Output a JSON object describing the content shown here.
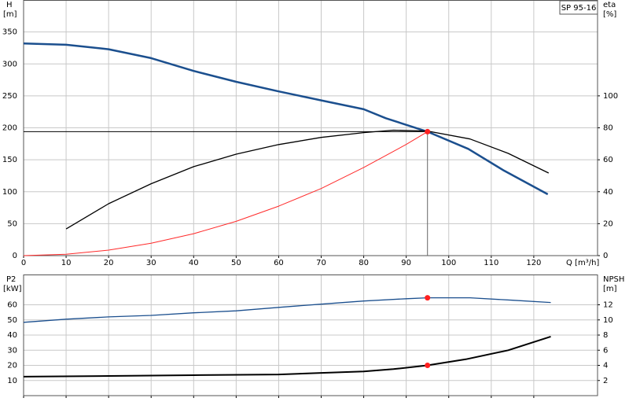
{
  "chart_data": [
    {
      "type": "line",
      "model": "SP 95-16",
      "ylabel": "H",
      "yunit": "[m]",
      "y2label": "eta",
      "y2unit": "[%]",
      "xlabel": "Q [m³/h]",
      "xlim": [
        0,
        135
      ],
      "ylim": [
        0,
        400
      ],
      "y2lim": [
        0,
        160
      ],
      "xticks": [
        0,
        10,
        20,
        30,
        40,
        50,
        60,
        70,
        80,
        90,
        100,
        110,
        120
      ],
      "yticks": [
        0,
        50,
        100,
        150,
        200,
        250,
        300,
        350
      ],
      "y2ticks": [
        0,
        20,
        40,
        60,
        80,
        100
      ],
      "grid": true,
      "show_xtick_labels": true,
      "guides": true,
      "series": [
        {
          "color": "#1b4f8e",
          "width": 2.5,
          "x": [
            0,
            10,
            20,
            30,
            40,
            50,
            60,
            70,
            80,
            85.2,
            95,
            104.6,
            113,
            123.3
          ],
          "values": [
            332,
            330,
            323,
            309,
            289,
            272,
            257,
            243,
            229,
            215,
            194,
            167,
            133,
            96
          ]
        },
        {
          "color": "#000000",
          "width": 1.3,
          "axis": "y2",
          "x": [
            10,
            20,
            30,
            40,
            50,
            60,
            70,
            80,
            87,
            95,
            105,
            114,
            123.5
          ],
          "values": [
            16.7,
            32.5,
            45,
            55.7,
            63.5,
            69.5,
            74,
            77,
            78.5,
            78,
            73,
            64,
            51.7
          ]
        },
        {
          "color": "#ff2a2a",
          "width": 1,
          "x": [
            0,
            10,
            20,
            30,
            40,
            50,
            60,
            70,
            80,
            90,
            95
          ],
          "values": [
            0,
            2.1,
            8.6,
            19.3,
            34.4,
            53.7,
            77.4,
            105,
            138,
            174,
            194
          ]
        }
      ],
      "markers": [
        {
          "x": 95,
          "value": 194,
          "color": "#ff2020"
        }
      ]
    },
    {
      "type": "line",
      "ylabel": "P2",
      "yunit": "[kW]",
      "y2label": "NPSH",
      "y2unit": "[m]",
      "xlim": [
        0,
        135
      ],
      "ylim": [
        0,
        80
      ],
      "y2lim": [
        0,
        16
      ],
      "xticks": [
        0,
        10,
        20,
        30,
        40,
        50,
        60,
        70,
        80,
        90,
        100,
        110,
        120
      ],
      "yticks": [
        10,
        20,
        30,
        40,
        50,
        60
      ],
      "y2ticks": [
        2,
        4,
        6,
        8,
        10,
        12
      ],
      "grid": true,
      "show_xtick_labels": false,
      "guides": false,
      "series": [
        {
          "color": "#1b4f8e",
          "width": 1.3,
          "x": [
            0,
            10,
            20,
            30,
            40,
            50,
            60,
            70,
            80,
            90,
            95,
            105,
            115,
            124
          ],
          "values": [
            48.4,
            50.5,
            52,
            53,
            54.7,
            56,
            58.3,
            60.4,
            62.5,
            64,
            64.6,
            64.6,
            63,
            61.5
          ]
        },
        {
          "color": "#000000",
          "width": 2,
          "axis": "y2",
          "x": [
            0,
            20,
            40,
            60,
            70,
            80,
            87,
            95,
            104,
            114,
            124
          ],
          "values": [
            2.5,
            2.6,
            2.7,
            2.8,
            3.0,
            3.2,
            3.5,
            4.0,
            4.8,
            6.0,
            7.8
          ]
        }
      ],
      "markers": [
        {
          "x": 95,
          "value": 64.6,
          "color": "#ff2020"
        },
        {
          "x": 95,
          "value": 4.0,
          "axis": "y2",
          "color": "#ff2020"
        }
      ]
    }
  ]
}
